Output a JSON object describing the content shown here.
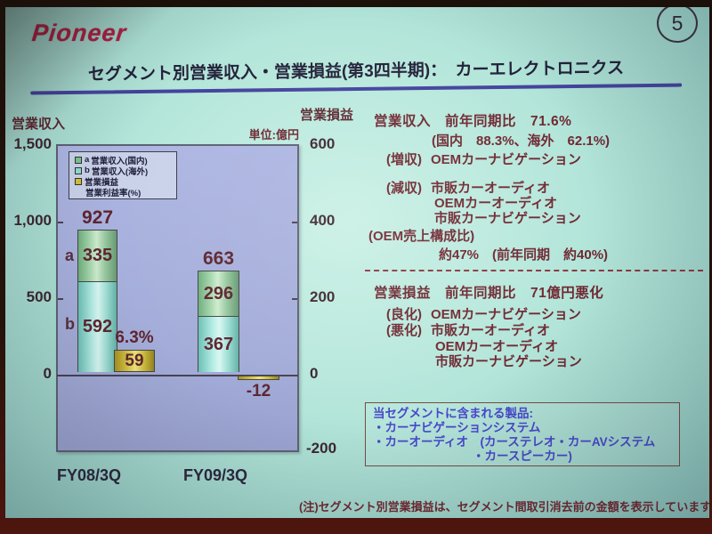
{
  "slide": {
    "logo_text": "Pioneer",
    "page_number": "5",
    "title": "セグメント別営業収入・営業損益(第3四半期)：　カーエレクトロニクス",
    "footnote": "(注)セグメント別営業損益は、セグメント間取引消去前の金額を表示しています。"
  },
  "chart_data": {
    "type": "bar",
    "title": "セグメント別営業収入・営業損益(第3四半期)： カーエレクトロニクス",
    "unit_label": "単位:億円",
    "left_axis": {
      "title": "営業収入",
      "range": [
        -500,
        1500
      ],
      "ticks": [
        "1,500",
        "1,000",
        "500",
        "0"
      ]
    },
    "right_axis": {
      "title": "営業損益",
      "range": [
        -200,
        600
      ],
      "ticks": [
        "600",
        "400",
        "200",
        "0",
        "-200"
      ]
    },
    "categories": [
      "FY08/3Q",
      "FY09/3Q"
    ],
    "series": [
      {
        "name": "営業収入(国内)",
        "key": "a",
        "axis": "left",
        "values": [
          335,
          296
        ]
      },
      {
        "name": "営業収入(海外)",
        "key": "b",
        "axis": "left",
        "values": [
          592,
          367
        ]
      },
      {
        "name": "営業損益",
        "axis": "right",
        "values": [
          59,
          -12
        ]
      },
      {
        "name": "営業利益率(%)",
        "values": [
          "6.3%",
          null
        ]
      }
    ],
    "totals": [
      927,
      663
    ],
    "legend": [
      {
        "key": "a",
        "label": "営業収入(国内)"
      },
      {
        "key": "b",
        "label": "営業収入(海外)"
      },
      {
        "key": "",
        "label": "営業損益"
      },
      {
        "key": "",
        "label": "営業利益率(%)"
      }
    ],
    "legend_position": "top-left",
    "grid": false
  },
  "labels": {
    "marker_a": "a",
    "marker_b": "b",
    "fy08": {
      "category": "FY08/3Q",
      "total": "927",
      "domestic": "335",
      "overseas": "592",
      "income": "59",
      "margin": "6.3%"
    },
    "fy09": {
      "category": "FY09/3Q",
      "total": "663",
      "domestic": "296",
      "overseas": "367",
      "income": "-12"
    }
  },
  "commentary": {
    "revenue": {
      "headline": "営業収入　前年同期比　71.6%",
      "breakdown": "(国内　88.3%、海外　62.1%)",
      "increase_label": "(増収)",
      "increase_item": "OEMカーナビゲーション",
      "decrease_label": "(減収)",
      "decrease_items": [
        "市販カーオーディオ",
        "OEMカーオーディオ",
        "市販カーナビゲーション"
      ],
      "oem_ratio_label": "(OEM売上構成比)",
      "oem_ratio_value": "約47%　(前年同期　約40%)"
    },
    "income": {
      "headline": "営業損益　前年同期比　71億円悪化",
      "improved_label": "(良化)",
      "improved_item": "OEMカーナビゲーション",
      "worsened_label": "(悪化)",
      "worsened_items": [
        "市販カーオーディオ",
        "OEMカーオーディオ",
        "市販カーナビゲーション"
      ]
    }
  },
  "products_box": {
    "heading": "当セグメントに含まれる製品:",
    "line1": "・カーナビゲーションシステム",
    "line2": "・カーオーディオ　(カーステレオ・カーAVシステム",
    "line3": "・カースピーカー)"
  }
}
